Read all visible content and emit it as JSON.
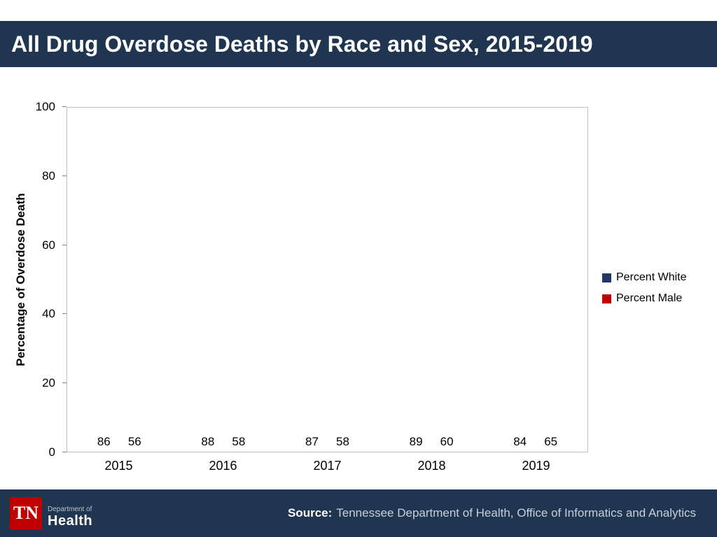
{
  "slide": {
    "title": "All Drug Overdose Deaths by Race and Sex, 2015-2019"
  },
  "chart_data": {
    "type": "bar",
    "title": "All Drug Overdose Deaths by Race and Sex, 2015-2019",
    "categories": [
      "2015",
      "2016",
      "2017",
      "2018",
      "2019"
    ],
    "series": [
      {
        "name": "Percent White",
        "color": "#1F3864",
        "values": [
          86,
          88,
          87,
          89,
          84
        ]
      },
      {
        "name": "Percent Male",
        "color": "#C00000",
        "values": [
          56,
          58,
          58,
          60,
          65
        ]
      }
    ],
    "xlabel": "",
    "ylabel": "Percentage of Overdose Death",
    "ylim": [
      0,
      100
    ],
    "yticks": [
      0,
      20,
      40,
      60,
      80,
      100
    ],
    "grid": false,
    "legend_position": "right",
    "data_labels": true
  },
  "footer": {
    "source_label": "Source:",
    "source_text": "Tennessee Department of Health, Office of Informatics and Analytics",
    "logo": {
      "tn": "TN",
      "dept": "Department of",
      "health": "Health"
    }
  },
  "colors": {
    "header_bg": "#1F3550",
    "footer_bg": "#1F3550",
    "bar_navy": "#1F3864",
    "bar_red": "#C00000",
    "logo_red": "#C00000"
  }
}
